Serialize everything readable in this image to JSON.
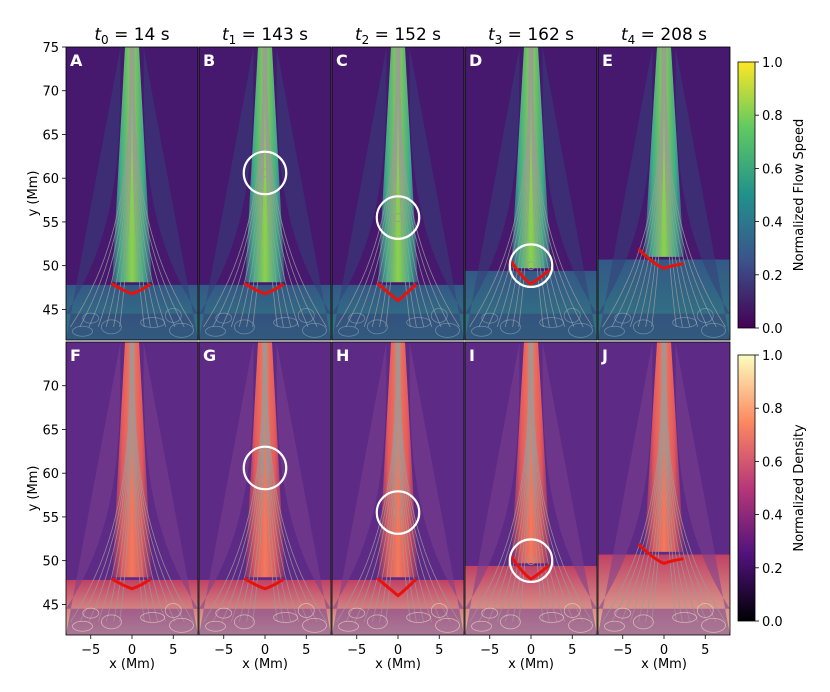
{
  "chart_data": {
    "type": "heatmap",
    "time_titles": [
      {
        "sym": "t",
        "sub": "0",
        "rest": " = 14 s"
      },
      {
        "sym": "t",
        "sub": "1",
        "rest": " = 143 s"
      },
      {
        "sym": "t",
        "sub": "2",
        "rest": " = 152 s"
      },
      {
        "sym": "t",
        "sub": "3",
        "rest": " = 162 s"
      },
      {
        "sym": "t",
        "sub": "4",
        "rest": " = 208 s"
      }
    ],
    "panel_labels_top": [
      "A",
      "B",
      "C",
      "D",
      "E"
    ],
    "panel_labels_bottom": [
      "F",
      "G",
      "H",
      "I",
      "J"
    ],
    "xlabel": "x (Mm)",
    "ylabel": "y (Mm)",
    "xlim": [
      -8,
      8
    ],
    "ylim": [
      41.5,
      75
    ],
    "x_ticks": [
      -5,
      0,
      5
    ],
    "x_tick_labels": [
      "−5",
      "0",
      "5"
    ],
    "y_ticks": [
      45,
      50,
      55,
      60,
      65,
      70,
      75
    ],
    "y_tick_labels": [
      "45",
      "50",
      "55",
      "60",
      "65",
      "70",
      "75"
    ],
    "grid": false,
    "front_y": [
      47.3,
      47.3,
      47.3,
      48.9,
      50.2
    ],
    "circles": [
      {
        "panel": 1,
        "x": 0,
        "y": 60.6,
        "r": 2.5
      },
      {
        "panel": 2,
        "x": 0,
        "y": 55.5,
        "r": 2.5
      },
      {
        "panel": 3,
        "x": 0,
        "y": 50.0,
        "r": 2.5
      }
    ],
    "colorbars": [
      {
        "label": "Normalized Flow Speed",
        "colormap": "viridis",
        "range": [
          0.0,
          1.0
        ],
        "ticks": [
          "0.0",
          "0.2",
          "0.4",
          "0.6",
          "0.8",
          "1.0"
        ]
      },
      {
        "label": "Normalized Density",
        "colormap": "magma",
        "range": [
          0.0,
          1.0
        ],
        "ticks": [
          "0.0",
          "0.2",
          "0.4",
          "0.6",
          "0.8",
          "1.0"
        ]
      }
    ],
    "colors": {
      "front": "#e8120c",
      "circle": "#ffffff",
      "field_lines": "#9a9a9a"
    }
  }
}
